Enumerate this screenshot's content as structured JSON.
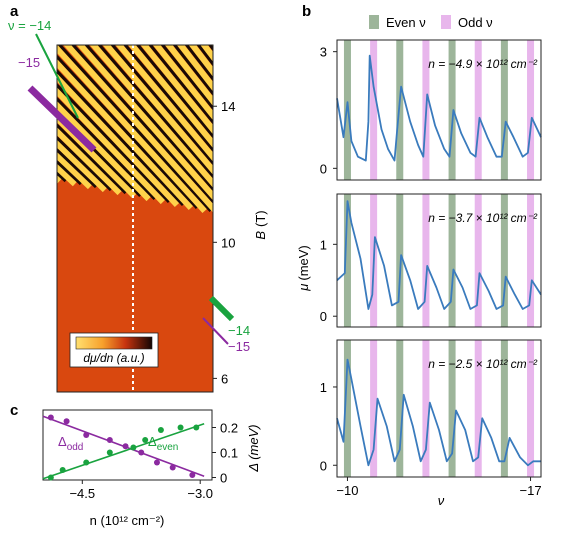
{
  "panel_labels": {
    "a": "a",
    "b": "b",
    "c": "c"
  },
  "colors": {
    "even_band": "#9db59a",
    "odd_band": "#e8b6ec",
    "curve": "#3a7bbd",
    "green": "#19a33f",
    "purple": "#8b2aa0",
    "heatmap_dark": "#1a0a05",
    "heatmap_mid": "#d9480f",
    "heatmap_bright": "#ffd24a"
  },
  "chart_data": [
    {
      "type": "heatmap",
      "panel": "a",
      "ylabel": "B (T)",
      "ylabel_main": "B",
      "ylabel_unit": "(T)",
      "yticks": [
        14,
        10,
        6
      ],
      "ylim": [
        5.6,
        15.8
      ],
      "colorbar_label": "dμ/dn (a.u.)",
      "annotations": [
        {
          "text": "ν = −14",
          "color": "green"
        },
        {
          "text": "−15",
          "color": "purple"
        },
        {
          "text": "−14",
          "color": "green"
        },
        {
          "text": "−15",
          "color": "purple"
        }
      ]
    },
    {
      "type": "line",
      "panel": "b",
      "legend": {
        "even": "Even ν",
        "odd": "Odd ν"
      },
      "xlabel": "ν",
      "ylabel": "μ (meV)",
      "xticks": [
        "−10",
        "−17"
      ],
      "xlim": [
        -9.6,
        -17.4
      ],
      "subpanels": [
        {
          "annotation": "n = −4.9 × 10¹² cm⁻²",
          "yticks": [
            "3",
            "0"
          ],
          "ylim": [
            -0.3,
            3.3
          ],
          "series": [
            {
              "x": [
                -9.6,
                -9.85,
                -10.0,
                -10.15,
                -10.4,
                -10.7,
                -10.8,
                -10.85,
                -11.0,
                -11.3,
                -11.55,
                -11.8,
                -11.9,
                -12.05,
                -12.4,
                -12.7,
                -12.9,
                -13.05,
                -13.35,
                -13.7,
                -13.9,
                -14.05,
                -14.35,
                -14.7,
                -14.9,
                -15.05,
                -15.35,
                -15.7,
                -15.9,
                -16.05,
                -16.35,
                -16.7,
                -16.9,
                -17.05,
                -17.4
              ],
              "y": [
                1.8,
                0.8,
                1.7,
                0.7,
                0.3,
                0.2,
                1.2,
                2.9,
                2.1,
                1.0,
                0.5,
                0.2,
                1.0,
                2.1,
                1.2,
                0.6,
                0.3,
                1.9,
                1.1,
                0.5,
                0.3,
                1.5,
                0.9,
                0.4,
                0.3,
                1.3,
                0.8,
                0.3,
                0.3,
                1.2,
                0.8,
                0.3,
                0.4,
                1.3,
                0.8
              ]
            }
          ]
        },
        {
          "annotation": "n = −3.7 × 10¹² cm⁻²",
          "yticks": [
            "1",
            "0"
          ],
          "ylim": [
            -0.15,
            1.7
          ],
          "series": [
            {
              "x": [
                -9.6,
                -9.9,
                -10.0,
                -10.15,
                -10.5,
                -10.8,
                -10.95,
                -11.05,
                -11.4,
                -11.7,
                -11.95,
                -12.05,
                -12.4,
                -12.7,
                -12.95,
                -13.05,
                -13.4,
                -13.7,
                -13.95,
                -14.05,
                -14.4,
                -14.7,
                -14.95,
                -15.05,
                -15.4,
                -15.7,
                -15.95,
                -16.05,
                -16.4,
                -16.7,
                -16.95,
                -17.05,
                -17.4
              ],
              "y": [
                0.5,
                0.6,
                1.6,
                1.3,
                0.8,
                0.1,
                0.3,
                1.1,
                0.7,
                0.15,
                0.2,
                0.85,
                0.5,
                0.1,
                0.2,
                0.7,
                0.4,
                0.1,
                0.2,
                0.65,
                0.4,
                0.1,
                0.15,
                0.6,
                0.35,
                0.1,
                0.15,
                0.55,
                0.3,
                0.1,
                0.15,
                0.5,
                0.3
              ]
            }
          ]
        },
        {
          "annotation": "n = −2.5 × 10¹² cm⁻²",
          "yticks": [
            "1",
            "0"
          ],
          "ylim": [
            -0.15,
            1.6
          ],
          "series": [
            {
              "x": [
                -9.6,
                -9.85,
                -10.0,
                -10.15,
                -10.5,
                -10.8,
                -11.0,
                -11.15,
                -11.5,
                -11.8,
                -12.0,
                -12.15,
                -12.5,
                -12.8,
                -13.0,
                -13.15,
                -13.5,
                -13.8,
                -14.0,
                -14.15,
                -14.5,
                -14.8,
                -15.0,
                -15.15,
                -15.5,
                -15.8,
                -16.0,
                -16.2,
                -16.6,
                -16.9,
                -17.1,
                -17.4
              ],
              "y": [
                0.6,
                0.3,
                1.35,
                1.1,
                0.5,
                0.0,
                0.2,
                0.85,
                0.5,
                0.05,
                0.2,
                0.9,
                0.5,
                0.05,
                0.2,
                0.8,
                0.45,
                0.05,
                0.15,
                0.7,
                0.45,
                0.05,
                0.1,
                0.6,
                0.35,
                0.05,
                0.05,
                0.35,
                0.1,
                0.0,
                0.05,
                0.05
              ]
            }
          ]
        }
      ],
      "even_nu": [
        -10,
        -12,
        -14,
        -16
      ],
      "odd_nu": [
        -11,
        -13,
        -15,
        -17
      ]
    },
    {
      "type": "scatter",
      "panel": "c",
      "xlabel": "n (10¹² cm⁻²)",
      "ylabel": "Δ (meV)",
      "xticks": [
        "−4.5",
        "−3.0"
      ],
      "xtick_values": [
        -4.5,
        -3.0
      ],
      "yticks": [
        "0.2",
        "0.1",
        "0"
      ],
      "ytick_values": [
        0.2,
        0.1,
        0
      ],
      "xlim": [
        -5.0,
        -2.85
      ],
      "ylim": [
        -0.01,
        0.27
      ],
      "series": [
        {
          "name": "Δodd",
          "color": "purple",
          "x": [
            -4.9,
            -4.7,
            -4.45,
            -4.15,
            -3.95,
            -3.75,
            -3.55,
            -3.35,
            -3.1
          ],
          "y": [
            0.24,
            0.225,
            0.17,
            0.15,
            0.125,
            0.1,
            0.06,
            0.04,
            0.01
          ]
        },
        {
          "name": "Δeven",
          "color": "green",
          "x": [
            -4.9,
            -4.75,
            -4.45,
            -4.15,
            -3.85,
            -3.7,
            -3.5,
            -3.25,
            -3.05
          ],
          "y": [
            0.0,
            0.03,
            0.06,
            0.1,
            0.12,
            0.15,
            0.19,
            0.2,
            0.2
          ]
        }
      ],
      "fits": [
        {
          "name": "Δodd",
          "color": "purple",
          "x": [
            -5.0,
            -2.95
          ],
          "y": [
            0.245,
            0.005
          ]
        },
        {
          "name": "Δeven",
          "color": "green",
          "x": [
            -5.0,
            -2.95
          ],
          "y": [
            -0.005,
            0.215
          ]
        }
      ],
      "series_labels": {
        "odd_main": "Δ",
        "odd_sub": "odd",
        "even_main": "Δ",
        "even_sub": "even"
      }
    }
  ]
}
